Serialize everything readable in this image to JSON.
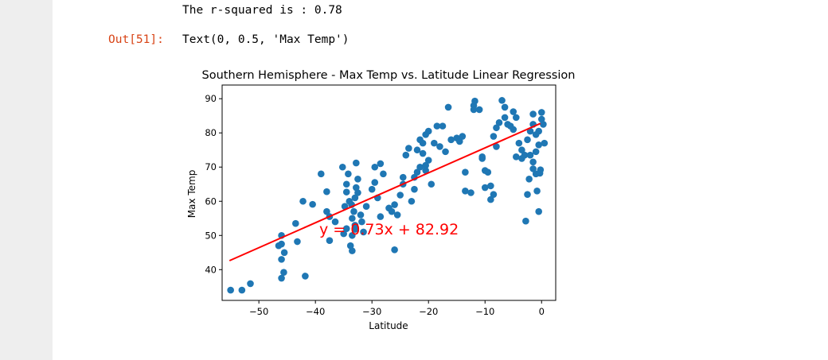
{
  "output": {
    "stdout": "The r-squared is : 0.78",
    "out_prompt": "Out[51]:",
    "out_text": "Text(0, 0.5, 'Max Temp')"
  },
  "colors": {
    "points": "#1f77b4",
    "regression_line": "#ff0000",
    "annotation": "#ff0000",
    "out_prompt": "#d84315"
  },
  "chart_data": {
    "type": "scatter",
    "title": "Southern Hemisphere - Max Temp vs. Latitude Linear Regression",
    "xlabel": "Latitude",
    "ylabel": "Max Temp",
    "xlim": [
      -56.5,
      2.5
    ],
    "ylim": [
      31,
      94
    ],
    "xticks": [
      -50,
      -40,
      -30,
      -20,
      -10,
      0
    ],
    "xtick_labels": [
      "−50",
      "−40",
      "−30",
      "−20",
      "−10",
      "0"
    ],
    "yticks": [
      40,
      50,
      60,
      70,
      80,
      90
    ],
    "ytick_labels": [
      "40",
      "50",
      "60",
      "70",
      "80",
      "90"
    ],
    "grid": false,
    "regression": {
      "slope": 0.73,
      "intercept": 82.92,
      "x_range": [
        -55.2,
        -0.2
      ]
    },
    "annotation": "y = 0.73x + 82.92",
    "points": [
      [
        -55.0,
        34
      ],
      [
        -53.0,
        34
      ],
      [
        -51.5,
        35.9
      ],
      [
        -46.0,
        37.5
      ],
      [
        -45.6,
        39.2
      ],
      [
        -41.8,
        38.1
      ],
      [
        -46.5,
        47
      ],
      [
        -46.0,
        47.5
      ],
      [
        -46.0,
        43
      ],
      [
        -45.5,
        45
      ],
      [
        -46.0,
        50
      ],
      [
        -43.2,
        48.2
      ],
      [
        -43.5,
        53.5
      ],
      [
        -42.2,
        60
      ],
      [
        -40.5,
        59.1
      ],
      [
        -39.0,
        68
      ],
      [
        -38.0,
        57
      ],
      [
        -38.0,
        62.8
      ],
      [
        -37.5,
        48.5
      ],
      [
        -37.5,
        55.5
      ],
      [
        -36.5,
        54
      ],
      [
        -35.0,
        50.5
      ],
      [
        -34.5,
        52
      ],
      [
        -34.8,
        58.5
      ],
      [
        -34.5,
        62.7
      ],
      [
        -34.0,
        60
      ],
      [
        -34.5,
        65
      ],
      [
        -34.2,
        68
      ],
      [
        -35.2,
        70
      ],
      [
        -33.5,
        45.5
      ],
      [
        -33.8,
        47
      ],
      [
        -33.5,
        50
      ],
      [
        -33.0,
        51.8
      ],
      [
        -33.5,
        55
      ],
      [
        -33.0,
        53
      ],
      [
        -33.2,
        57
      ],
      [
        -33.6,
        59
      ],
      [
        -33.0,
        61
      ],
      [
        -32.5,
        62.5
      ],
      [
        -32.8,
        64
      ],
      [
        -32.5,
        66.5
      ],
      [
        -32.8,
        71.2
      ],
      [
        -32.0,
        56
      ],
      [
        -31.8,
        54
      ],
      [
        -31.0,
        58.5
      ],
      [
        -31.5,
        51
      ],
      [
        -30.0,
        63.5
      ],
      [
        -29.5,
        70
      ],
      [
        -29.0,
        61
      ],
      [
        -28.5,
        55.5
      ],
      [
        -29.5,
        65.5
      ],
      [
        -28.5,
        71
      ],
      [
        -28.0,
        68
      ],
      [
        -27.0,
        58
      ],
      [
        -26.5,
        57
      ],
      [
        -26.0,
        45.8
      ],
      [
        -26.0,
        59
      ],
      [
        -25.5,
        56
      ],
      [
        -25.0,
        61.8
      ],
      [
        -24.5,
        65
      ],
      [
        -24.5,
        67
      ],
      [
        -24.0,
        73.5
      ],
      [
        -23.5,
        75.5
      ],
      [
        -23.0,
        60
      ],
      [
        -22.5,
        63.5
      ],
      [
        -22.5,
        67
      ],
      [
        -22.0,
        68.5
      ],
      [
        -22.0,
        75
      ],
      [
        -21.5,
        70
      ],
      [
        -21.0,
        74
      ],
      [
        -20.5,
        69
      ],
      [
        -20.5,
        70.5
      ],
      [
        -20.0,
        72
      ],
      [
        -21.0,
        77
      ],
      [
        -21.5,
        78
      ],
      [
        -20.5,
        79.5
      ],
      [
        -20.0,
        80.5
      ],
      [
        -19.5,
        65
      ],
      [
        -19.0,
        77
      ],
      [
        -18.5,
        82
      ],
      [
        -18.0,
        76
      ],
      [
        -17.5,
        82
      ],
      [
        -17.0,
        74.5
      ],
      [
        -16.5,
        87.5
      ],
      [
        -16.0,
        78
      ],
      [
        -15.0,
        78.5
      ],
      [
        -14.5,
        77.5
      ],
      [
        -14.0,
        79
      ],
      [
        -13.5,
        63
      ],
      [
        -13.5,
        68.5
      ],
      [
        -12.5,
        62.5
      ],
      [
        -12.0,
        88
      ],
      [
        -12.0,
        86.8
      ],
      [
        -11.8,
        89.3
      ],
      [
        -11.0,
        86.8
      ],
      [
        -10.5,
        72.5
      ],
      [
        -10.5,
        73
      ],
      [
        -10.0,
        69
      ],
      [
        -10.0,
        64
      ],
      [
        -9.5,
        68.5
      ],
      [
        -9.0,
        64.5
      ],
      [
        -9.0,
        60.5
      ],
      [
        -8.5,
        62
      ],
      [
        -8.0,
        76
      ],
      [
        -8.5,
        79
      ],
      [
        -8.0,
        81.5
      ],
      [
        -7.5,
        83
      ],
      [
        -7.0,
        89.5
      ],
      [
        -6.5,
        87.5
      ],
      [
        -6.5,
        84.5
      ],
      [
        -6.0,
        82.5
      ],
      [
        -5.5,
        82
      ],
      [
        -5.0,
        81
      ],
      [
        -5.0,
        86.2
      ],
      [
        -4.5,
        84.5
      ],
      [
        -4.5,
        73
      ],
      [
        -4.0,
        77
      ],
      [
        -3.5,
        75
      ],
      [
        -3.5,
        72.5
      ],
      [
        -3.0,
        73.5
      ],
      [
        -2.5,
        62
      ],
      [
        -2.5,
        78
      ],
      [
        -2.0,
        80.5
      ],
      [
        -1.5,
        85.5
      ],
      [
        -1.5,
        82.5
      ],
      [
        -1.0,
        79.5
      ],
      [
        -1.0,
        74.5
      ],
      [
        -0.5,
        80.5
      ],
      [
        0.0,
        84
      ],
      [
        0.0,
        86
      ],
      [
        -2.0,
        73.5
      ],
      [
        -1.5,
        71.5
      ],
      [
        -0.5,
        76.5
      ],
      [
        -2.8,
        54.2
      ],
      [
        -2.2,
        66.5
      ],
      [
        -1.5,
        69.5
      ],
      [
        -1.0,
        68
      ],
      [
        -0.5,
        57
      ],
      [
        -0.2,
        69.2
      ],
      [
        -0.3,
        68.2
      ],
      [
        -0.8,
        63
      ],
      [
        0.3,
        82.5
      ],
      [
        0.5,
        77
      ]
    ]
  }
}
